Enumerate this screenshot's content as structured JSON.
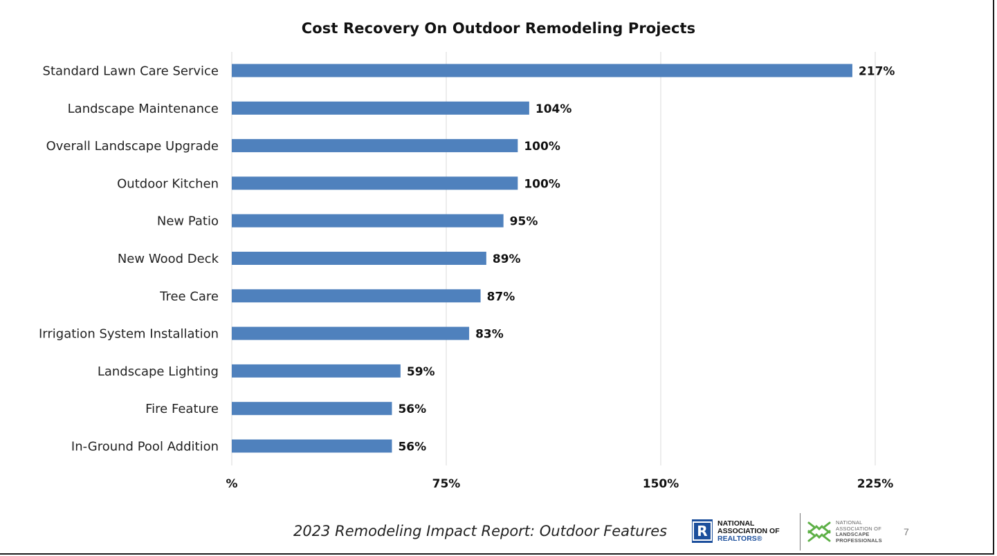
{
  "chart_data": {
    "type": "bar",
    "orientation": "horizontal",
    "title": "Cost Recovery On Outdoor Remodeling Projects",
    "categories": [
      "Standard Lawn Care Service",
      "Landscape Maintenance",
      "Overall Landscape Upgrade",
      "Outdoor Kitchen",
      "New Patio",
      "New Wood Deck",
      "Tree Care",
      "Irrigation System Installation",
      "Landscape Lighting",
      "Fire Feature",
      "In-Ground Pool Addition"
    ],
    "values": [
      217,
      104,
      100,
      100,
      95,
      89,
      87,
      83,
      59,
      56,
      56
    ],
    "data_labels": [
      "217%",
      "104%",
      "100%",
      "100%",
      "95%",
      "89%",
      "87%",
      "83%",
      "59%",
      "56%",
      "56%"
    ],
    "xlim": [
      0,
      225
    ],
    "x_ticks": [
      0,
      75,
      150,
      225
    ],
    "x_tick_labels": [
      "%",
      "75%",
      "150%",
      "225%"
    ],
    "xlabel": "",
    "ylabel": "",
    "grid": "vertical",
    "legend": "none",
    "bar_color": "#4f81bd",
    "gridline_color": "#d9d9d9"
  },
  "footer": {
    "report_title": "2023 Remodeling Impact Report: Outdoor Features",
    "page_number": "7"
  },
  "logos": {
    "nar": {
      "mark_letter": "R",
      "line1": "NATIONAL",
      "line2": "ASSOCIATION OF",
      "line3": "REALTORS®",
      "color": "#1c4f9c"
    },
    "nalp": {
      "line1": "NATIONAL",
      "line2": "ASSOCIATION OF",
      "line3": "LANDSCAPE",
      "line4": "PROFESSIONALS",
      "color": "#5db046"
    }
  }
}
